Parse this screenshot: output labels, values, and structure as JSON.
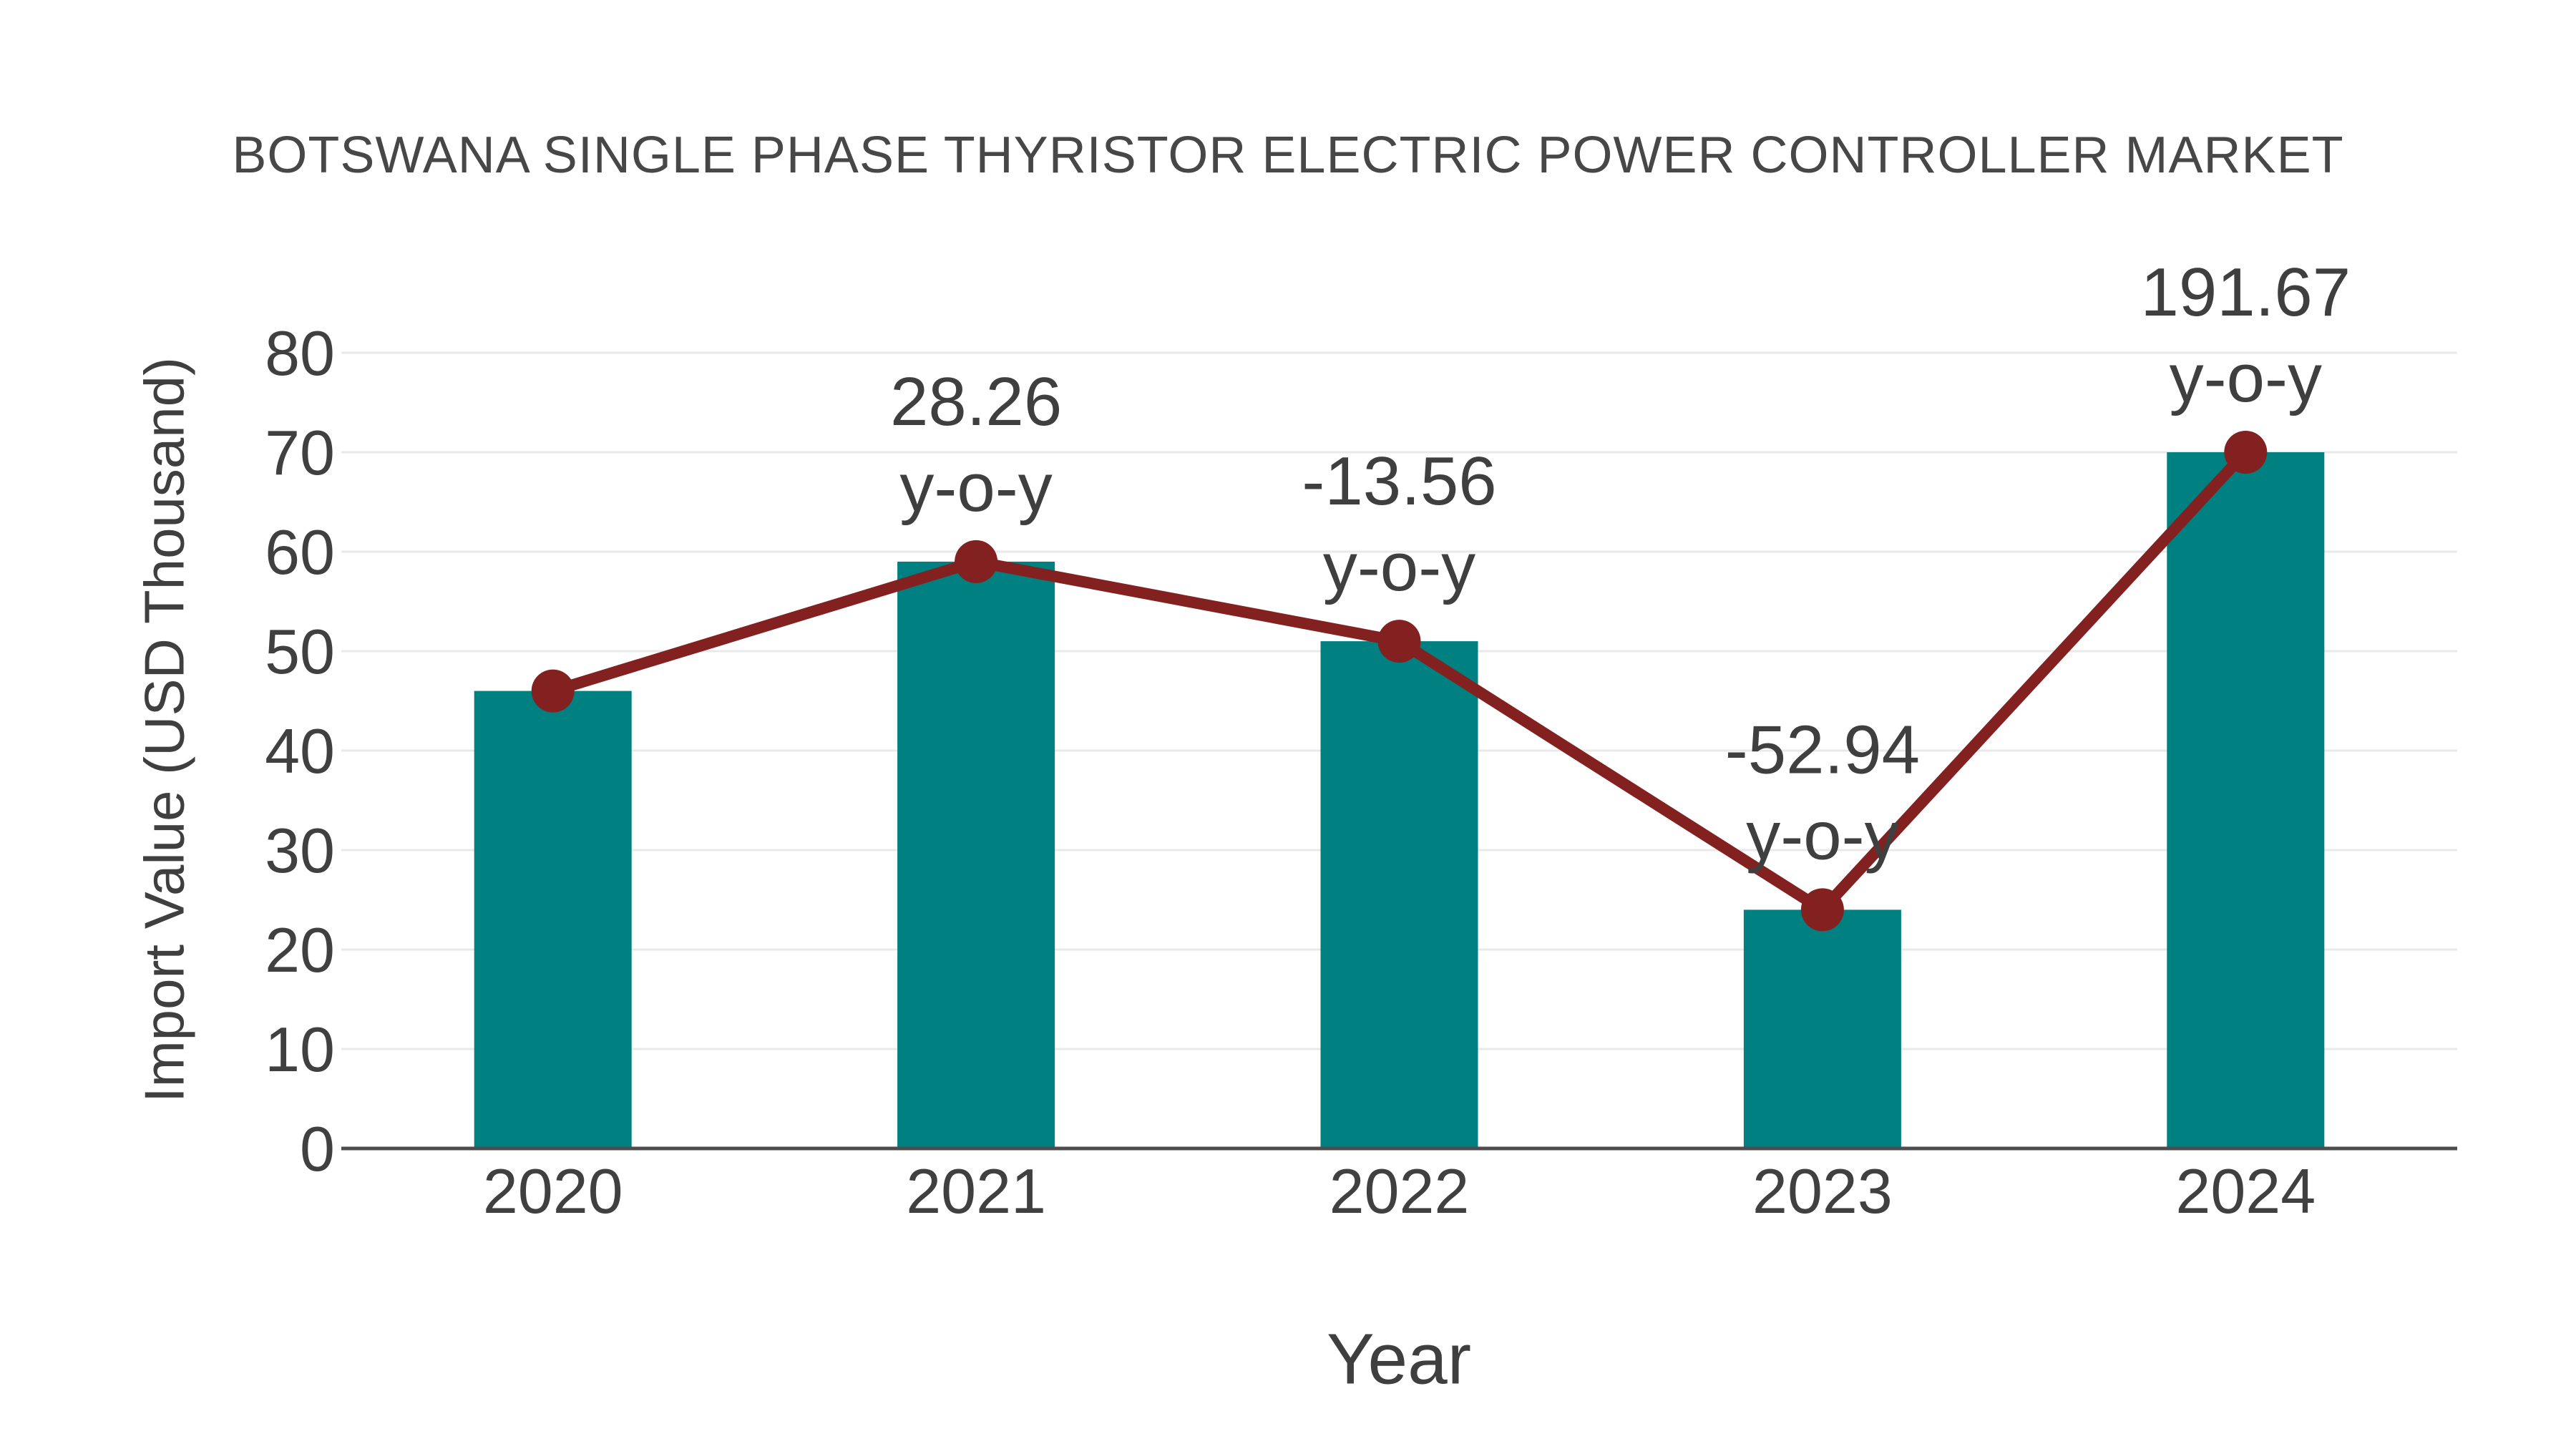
{
  "chart_data": {
    "type": "bar",
    "title": "BOTSWANA SINGLE PHASE THYRISTOR ELECTRIC POWER CONTROLLER MARKET",
    "xlabel": "Year",
    "ylabel": "Import Value (USD Thousand)",
    "categories": [
      "2020",
      "2021",
      "2022",
      "2023",
      "2024"
    ],
    "series": [
      {
        "name": "import-value-bars",
        "type": "bar",
        "values": [
          46,
          59,
          51,
          24,
          70
        ],
        "color": "#008080"
      },
      {
        "name": "yoy-growth-line",
        "type": "line",
        "values": [
          46,
          59,
          51,
          24,
          70
        ],
        "point_labels": [
          null,
          "28.26",
          "-13.56",
          "-52.94",
          "191.67"
        ],
        "point_label_suffix": "y-o-y",
        "color": "#832121"
      }
    ],
    "ylim": [
      0,
      80
    ],
    "yticks": [
      0,
      10,
      20,
      30,
      40,
      50,
      60,
      70,
      80
    ],
    "grid": true,
    "legend": "none",
    "colors": {
      "bar": "#008080",
      "line": "#832121",
      "marker": "#832121",
      "text": "#404040",
      "label_text": "#3f3f3f",
      "gridline": "#e9e9e9",
      "axis_line": "#4d4d4d",
      "background": "#ffffff"
    }
  }
}
